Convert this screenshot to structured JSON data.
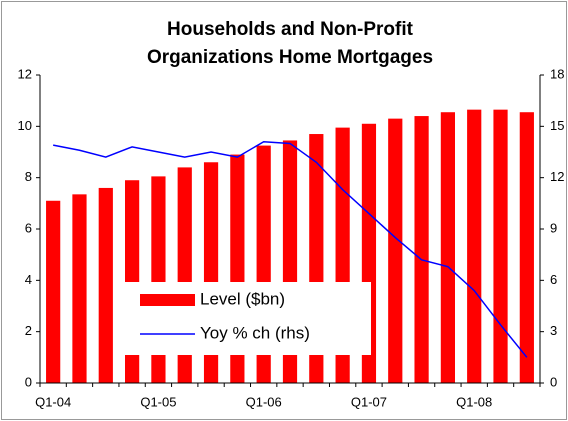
{
  "chart_data": {
    "type": "bar-line",
    "title": [
      "Households and Non-Profit",
      "Organizations Home Mortgages"
    ],
    "categories": [
      "Q1-04",
      null,
      null,
      null,
      "Q1-05",
      null,
      null,
      null,
      "Q1-06",
      null,
      null,
      null,
      "Q1-07",
      null,
      null,
      null,
      "Q1-08",
      null,
      null
    ],
    "series": [
      {
        "name": "Level ($bn)",
        "color": "#ff0000",
        "type": "bar",
        "axis": "y",
        "values": [
          7.1,
          7.35,
          7.6,
          7.9,
          8.05,
          8.4,
          8.6,
          8.9,
          9.25,
          9.45,
          9.7,
          9.95,
          10.1,
          10.3,
          10.4,
          10.55,
          10.65,
          10.65,
          10.55
        ]
      },
      {
        "name": "Yoy % ch (rhs)",
        "color": "#0000ff",
        "type": "line",
        "axis": "y2",
        "values": [
          13.9,
          13.6,
          13.2,
          13.8,
          13.5,
          13.2,
          13.5,
          13.2,
          14.1,
          14.0,
          12.9,
          11.3,
          9.9,
          8.5,
          7.2,
          6.8,
          5.4,
          3.4,
          1.5
        ]
      }
    ],
    "ylim": [
      0,
      12
    ],
    "yticks": [
      0,
      2,
      4,
      6,
      8,
      10,
      12
    ],
    "y2lim": [
      0,
      18
    ],
    "y2ticks": [
      0,
      3,
      6,
      9,
      12,
      15,
      18
    ]
  }
}
